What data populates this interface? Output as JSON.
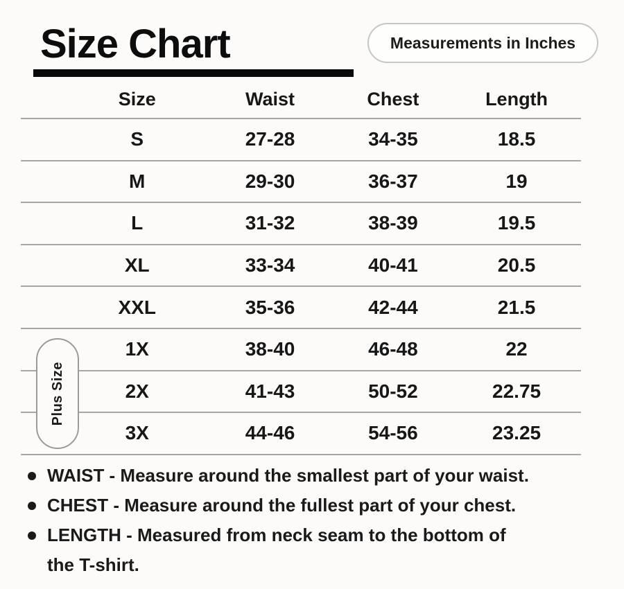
{
  "header": {
    "title": "Size Chart",
    "badge": "Measurements in Inches"
  },
  "table": {
    "columns": [
      "Size",
      "Waist",
      "Chest",
      "Length"
    ],
    "rows": [
      {
        "size": "S",
        "waist": "27-28",
        "chest": "34-35",
        "length": "18.5"
      },
      {
        "size": "M",
        "waist": "29-30",
        "chest": "36-37",
        "length": "19"
      },
      {
        "size": "L",
        "waist": "31-32",
        "chest": "38-39",
        "length": "19.5"
      },
      {
        "size": "XL",
        "waist": "33-34",
        "chest": "40-41",
        "length": "20.5"
      },
      {
        "size": "XXL",
        "waist": "35-36",
        "chest": "42-44",
        "length": "21.5"
      },
      {
        "size": "1X",
        "waist": "38-40",
        "chest": "46-48",
        "length": "22"
      },
      {
        "size": "2X",
        "waist": "41-43",
        "chest": "50-52",
        "length": "22.75"
      },
      {
        "size": "3X",
        "waist": "44-46",
        "chest": "54-56",
        "length": "23.25"
      }
    ],
    "plus_size_label": "Plus Size"
  },
  "notes": [
    {
      "lines": [
        "WAIST - Measure around the smallest part of your waist."
      ]
    },
    {
      "lines": [
        "CHEST - Measure around the fullest part of your chest."
      ]
    },
    {
      "lines": [
        "LENGTH - Measured from neck seam to the bottom of",
        "the T-shirt."
      ]
    }
  ],
  "icons": {
    "bullet": "•"
  },
  "colors": {
    "background": "#fcfbf9",
    "text": "#161616",
    "divider": "#a6a6a6",
    "title_bar": "#0a0a0a",
    "badge_border": "#c8c6c1",
    "pill_border": "#9a9a9a"
  },
  "chart_data": {
    "type": "table",
    "title": "Size Chart",
    "subtitle": "Measurements in Inches",
    "columns": [
      "Size",
      "Waist",
      "Chest",
      "Length"
    ],
    "rows": [
      [
        "S",
        "27-28",
        "34-35",
        "18.5"
      ],
      [
        "M",
        "29-30",
        "36-37",
        "19"
      ],
      [
        "L",
        "31-32",
        "38-39",
        "19.5"
      ],
      [
        "XL",
        "33-34",
        "40-41",
        "20.5"
      ],
      [
        "XXL",
        "35-36",
        "42-44",
        "21.5"
      ],
      [
        "1X",
        "38-40",
        "46-48",
        "22"
      ],
      [
        "2X",
        "41-43",
        "50-52",
        "22.75"
      ],
      [
        "3X",
        "44-46",
        "54-56",
        "23.25"
      ]
    ],
    "group_annotations": [
      {
        "label": "Plus Size",
        "rows": [
          "1X",
          "2X",
          "3X"
        ]
      }
    ]
  }
}
